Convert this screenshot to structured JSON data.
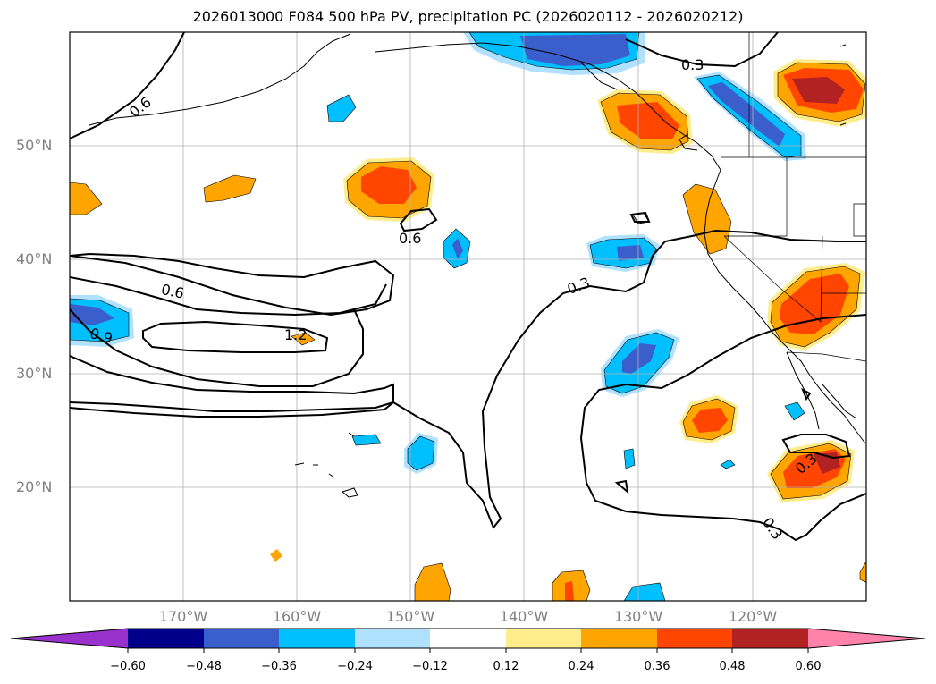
{
  "title": "2026013000 F084 500 hPa PV, precipitation PC (2026020112 - 2026020212)",
  "lat_labels": [
    "50°N",
    "40°N",
    "30°N",
    "20°N"
  ],
  "lon_labels": [
    "170°W",
    "160°W",
    "150°W",
    "140°W",
    "130°W",
    "120°W"
  ],
  "contour_labels": [
    "0.6",
    "0.3",
    "0.6",
    "0.6",
    "0.3",
    "1.2",
    "0.9",
    "0.3",
    "0.3"
  ],
  "colorbar": {
    "ticks": [
      "−0.60",
      "−0.48",
      "−0.36",
      "−0.24",
      "−0.12",
      "0.12",
      "0.24",
      "0.36",
      "0.48",
      "0.60"
    ],
    "colors": [
      "#9932cc",
      "#00008b",
      "#3a5fcd",
      "#00bfff",
      "#b0e2ff",
      "#ffffff",
      "#ffec8b",
      "#ffa500",
      "#ff4500",
      "#b22222",
      "#ff82ab"
    ]
  }
}
